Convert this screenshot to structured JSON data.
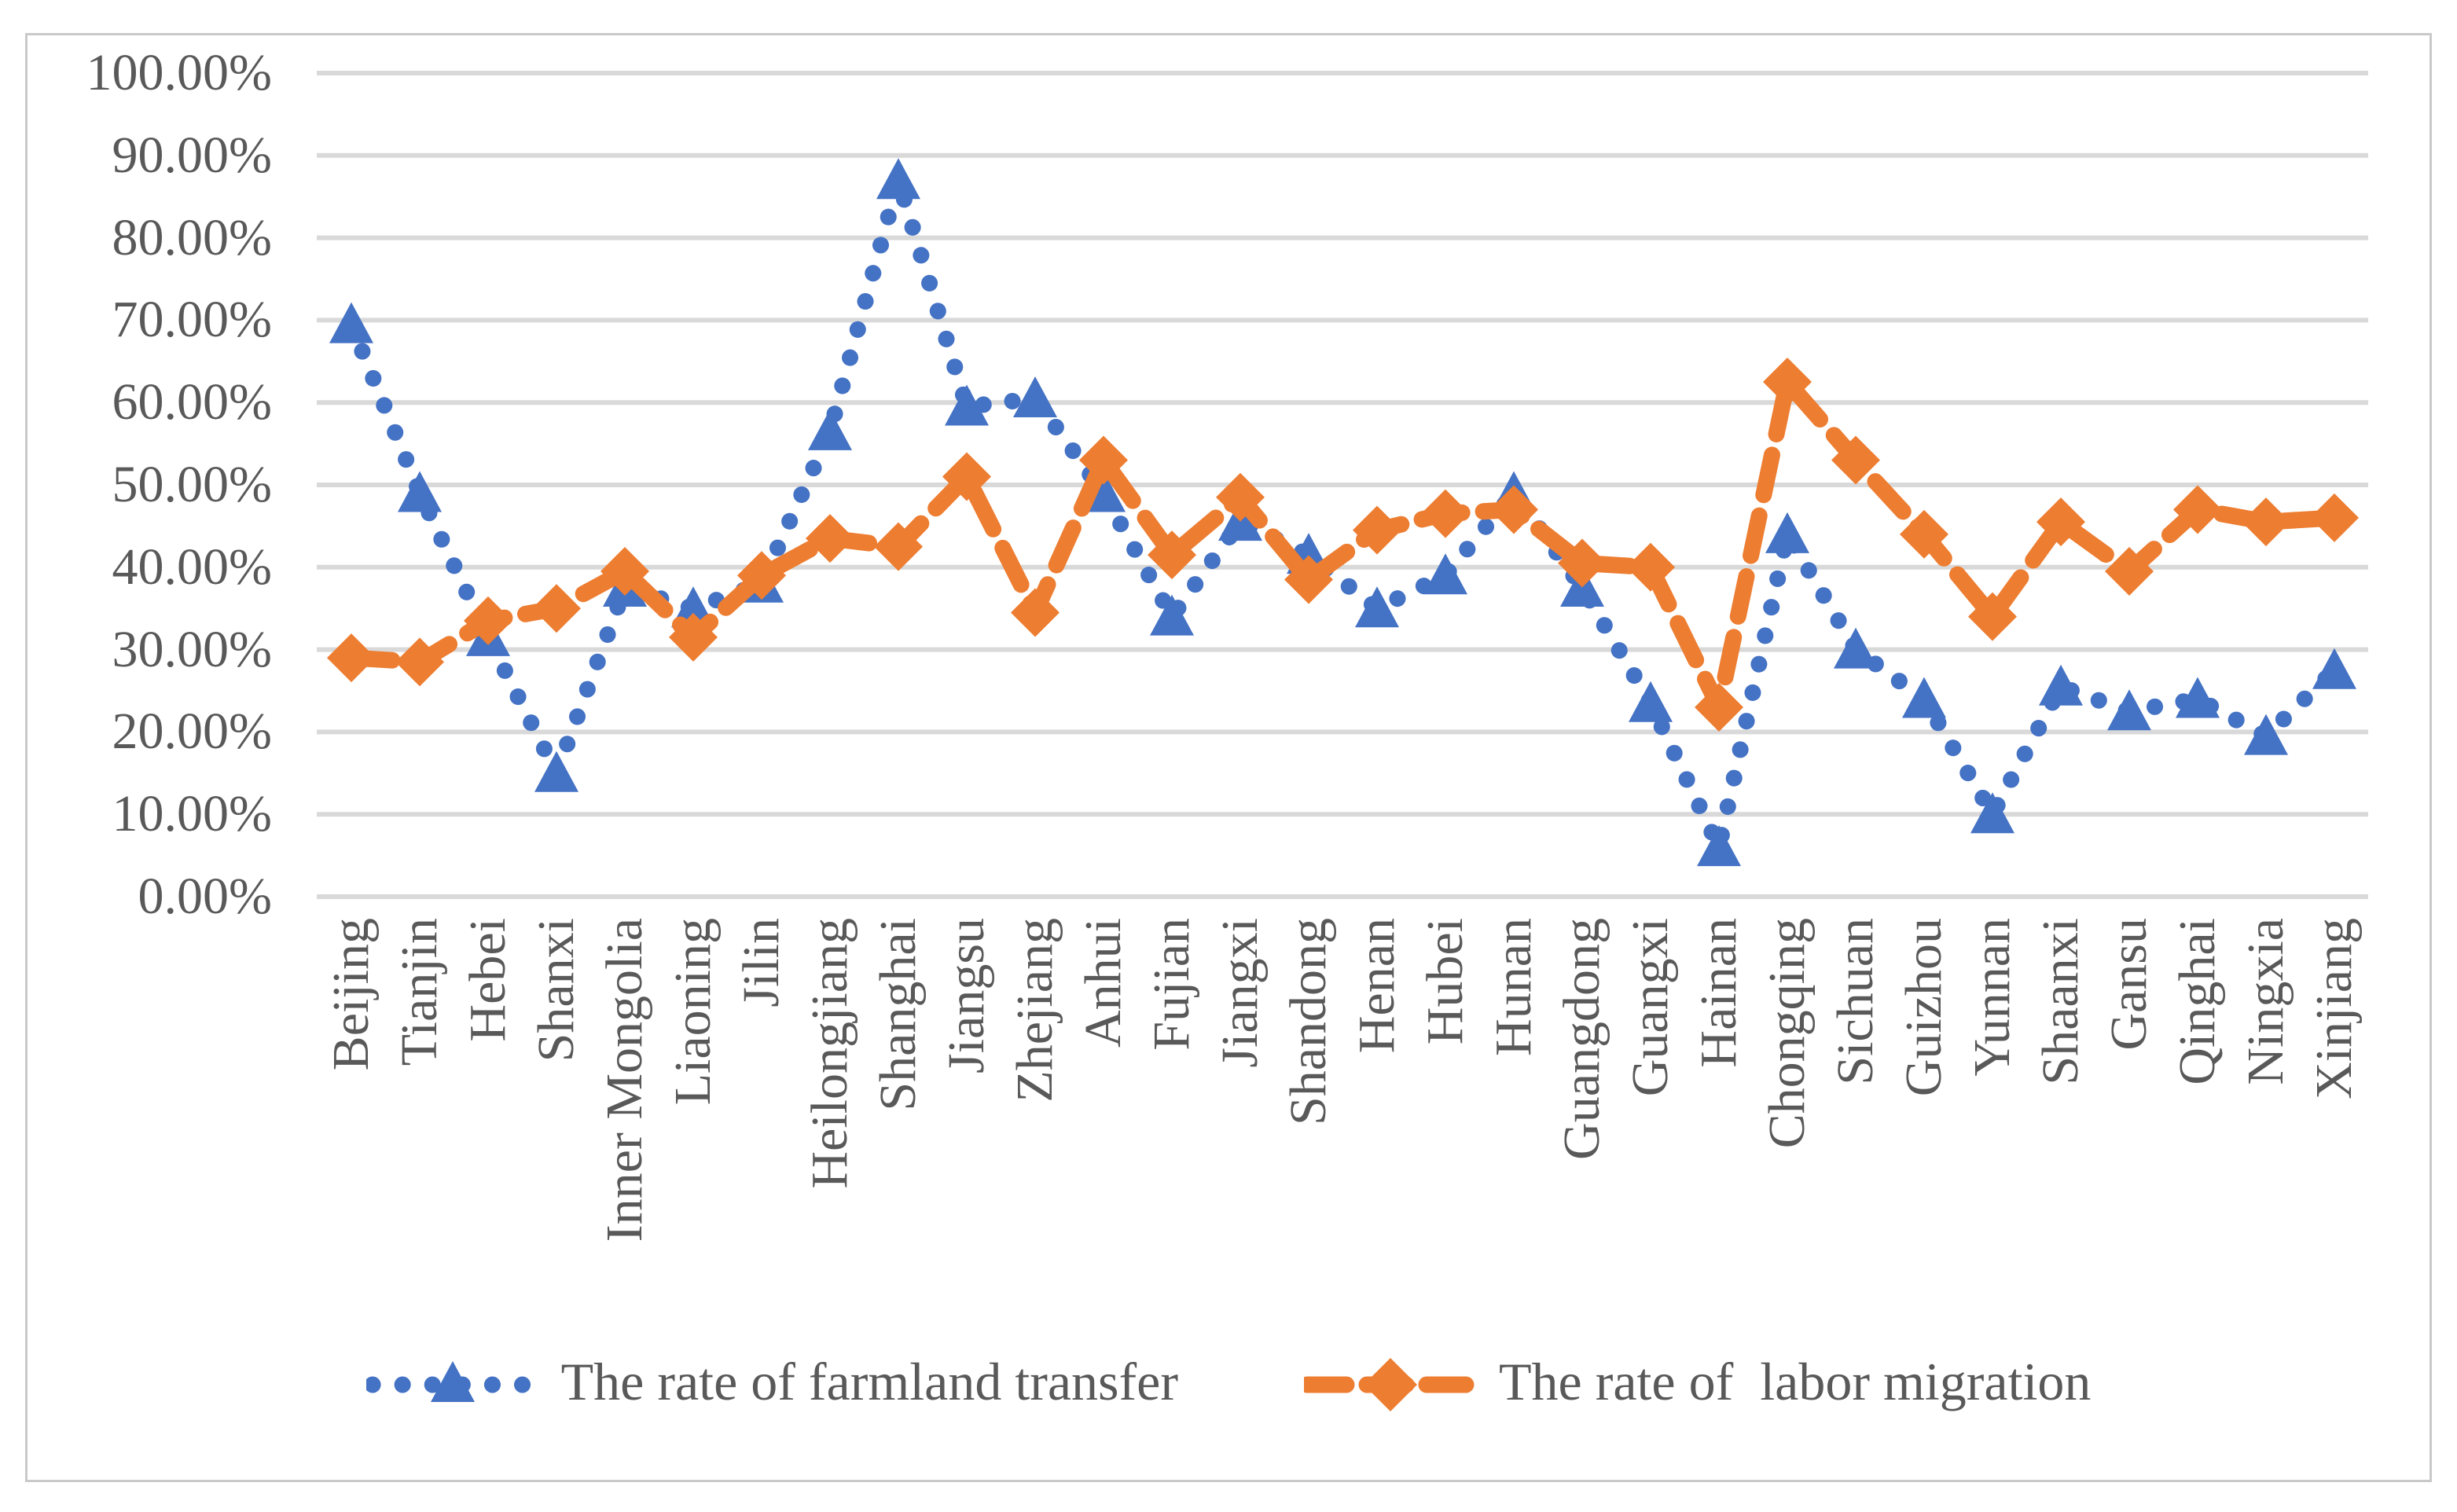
{
  "figure": {
    "background_color": "#FFFFFF",
    "frame_border_color": "#C9C9C9"
  },
  "chart_data": {
    "type": "line",
    "title": "",
    "xlabel": "",
    "ylabel": "",
    "grid": "horizontal",
    "gridline_color": "#D9D9D9",
    "text_color": "#595959",
    "legend_position": "bottom",
    "ylim": [
      0,
      100
    ],
    "ytick_step": 10,
    "ytick_labels": [
      "0.00%",
      "10.00%",
      "20.00%",
      "30.00%",
      "40.00%",
      "50.00%",
      "60.00%",
      "70.00%",
      "80.00%",
      "90.00%",
      "100.00%"
    ],
    "categories": [
      "Beijing",
      "Tianjin",
      "Hebei",
      "Shanxi",
      "Inner Mongolia",
      "Liaoning",
      "Jilin",
      "Heilongjiang",
      "Shanghai",
      "Jiangsu",
      "Zhejiang",
      "Anhui",
      "Fujian",
      "Jiangxi",
      "Shandong",
      "Henan",
      "Hubei",
      "Hunan",
      "Guangdong",
      "Guangxi",
      "Hainan",
      "Chongqing",
      "Sichuan",
      "Guizhou",
      "Yunnan",
      "Shaanxi",
      "Gansu",
      "Qinghai",
      "Ningxia",
      "Xinjiang"
    ],
    "series": [
      {
        "name": "The rate of farmland transfer",
        "color": "#4472C4",
        "marker": "triangle",
        "line_style": "dotted",
        "values": [
          69.5,
          49,
          31.5,
          15,
          37.5,
          35,
          38,
          56.5,
          87,
          59.5,
          60.5,
          49,
          34,
          45.5,
          41.5,
          35,
          39,
          49,
          37.5,
          23.5,
          6,
          44,
          30,
          24,
          10,
          25.5,
          22.5,
          24,
          19.5,
          27.5
        ]
      },
      {
        "name": "The rate of  labor migration",
        "color": "#ED7D31",
        "marker": "diamond",
        "line_style": "dashed",
        "values": [
          29,
          28.5,
          33.5,
          35,
          39.5,
          31.5,
          39,
          43.5,
          42.5,
          51,
          34.5,
          53,
          41.5,
          48.5,
          38.5,
          44.5,
          46.5,
          47,
          40.5,
          40,
          23,
          62.5,
          53,
          44,
          34,
          45.5,
          39.5,
          47,
          45.5,
          46
        ]
      }
    ]
  }
}
